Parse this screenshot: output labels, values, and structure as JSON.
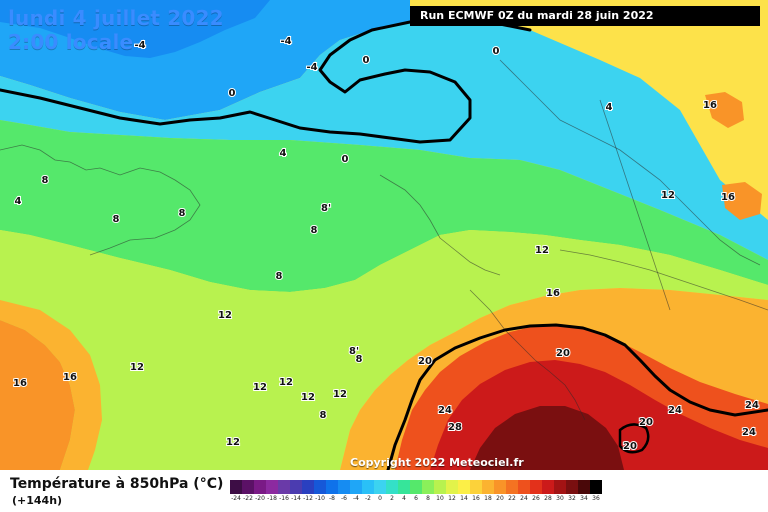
{
  "header": {
    "date": "lundi 4 juillet 2022",
    "time": "2:00 locale",
    "run": "Run ECMWF 0Z du mardi 28 juin 2022"
  },
  "copyright": "Copyright 2022 Meteociel.fr",
  "footer": {
    "parameter": "Température à 850hPa (°C)",
    "lead_time": "(+144h)"
  },
  "scale": {
    "labels": [
      "-24",
      "-22",
      "-20",
      "-18",
      "-16",
      "-14",
      "-12",
      "-10",
      "-8",
      "-6",
      "-4",
      "-2",
      "0",
      "2",
      "4",
      "6",
      "8",
      "10",
      "12",
      "14",
      "16",
      "18",
      "20",
      "22",
      "24",
      "26",
      "28",
      "30",
      "32",
      "34",
      "36"
    ],
    "colors": [
      "#3d0d45",
      "#5b1166",
      "#7a1a86",
      "#8c2aa0",
      "#6a3aa8",
      "#4b3cb0",
      "#2a40c0",
      "#1658d8",
      "#0f72ea",
      "#168cf2",
      "#1fa6f7",
      "#2ac0f7",
      "#3cd3f0",
      "#34e0c8",
      "#36e59a",
      "#55e86b",
      "#8af05a",
      "#b8f24f",
      "#e2f34a",
      "#fcef47",
      "#fcd23a",
      "#fbb330",
      "#f99428",
      "#f47322",
      "#ee511d",
      "#e3311b",
      "#cc1a1a",
      "#a31314",
      "#7a0f10",
      "#4a0809",
      "#000000"
    ]
  },
  "map": {
    "background_color": "#fde24a",
    "isolines": [
      {
        "level": "0",
        "color": "#000000"
      },
      {
        "level": "20",
        "color": "#000000"
      }
    ],
    "labels": [
      {
        "text": "-4"
      },
      {
        "text": "-4"
      },
      {
        "text": "-4"
      },
      {
        "text": "0"
      },
      {
        "text": "0"
      },
      {
        "text": "0"
      },
      {
        "text": "0"
      },
      {
        "text": "4"
      },
      {
        "text": "4"
      },
      {
        "text": "4"
      },
      {
        "text": "8"
      },
      {
        "text": "8"
      },
      {
        "text": "8"
      },
      {
        "text": "8'"
      },
      {
        "text": "8"
      },
      {
        "text": "8"
      },
      {
        "text": "8'"
      },
      {
        "text": "8"
      },
      {
        "text": "8"
      },
      {
        "text": "12"
      },
      {
        "text": "12"
      },
      {
        "text": "12"
      },
      {
        "text": "12"
      },
      {
        "text": "12"
      },
      {
        "text": "12"
      },
      {
        "text": "12"
      },
      {
        "text": "12"
      },
      {
        "text": "12"
      },
      {
        "text": "16"
      },
      {
        "text": "16"
      },
      {
        "text": "16"
      },
      {
        "text": "16"
      },
      {
        "text": "16"
      },
      {
        "text": "20"
      },
      {
        "text": "20"
      },
      {
        "text": "20"
      },
      {
        "text": "20"
      },
      {
        "text": "24"
      },
      {
        "text": "24"
      },
      {
        "text": "24"
      },
      {
        "text": "24"
      },
      {
        "text": "28"
      }
    ]
  }
}
